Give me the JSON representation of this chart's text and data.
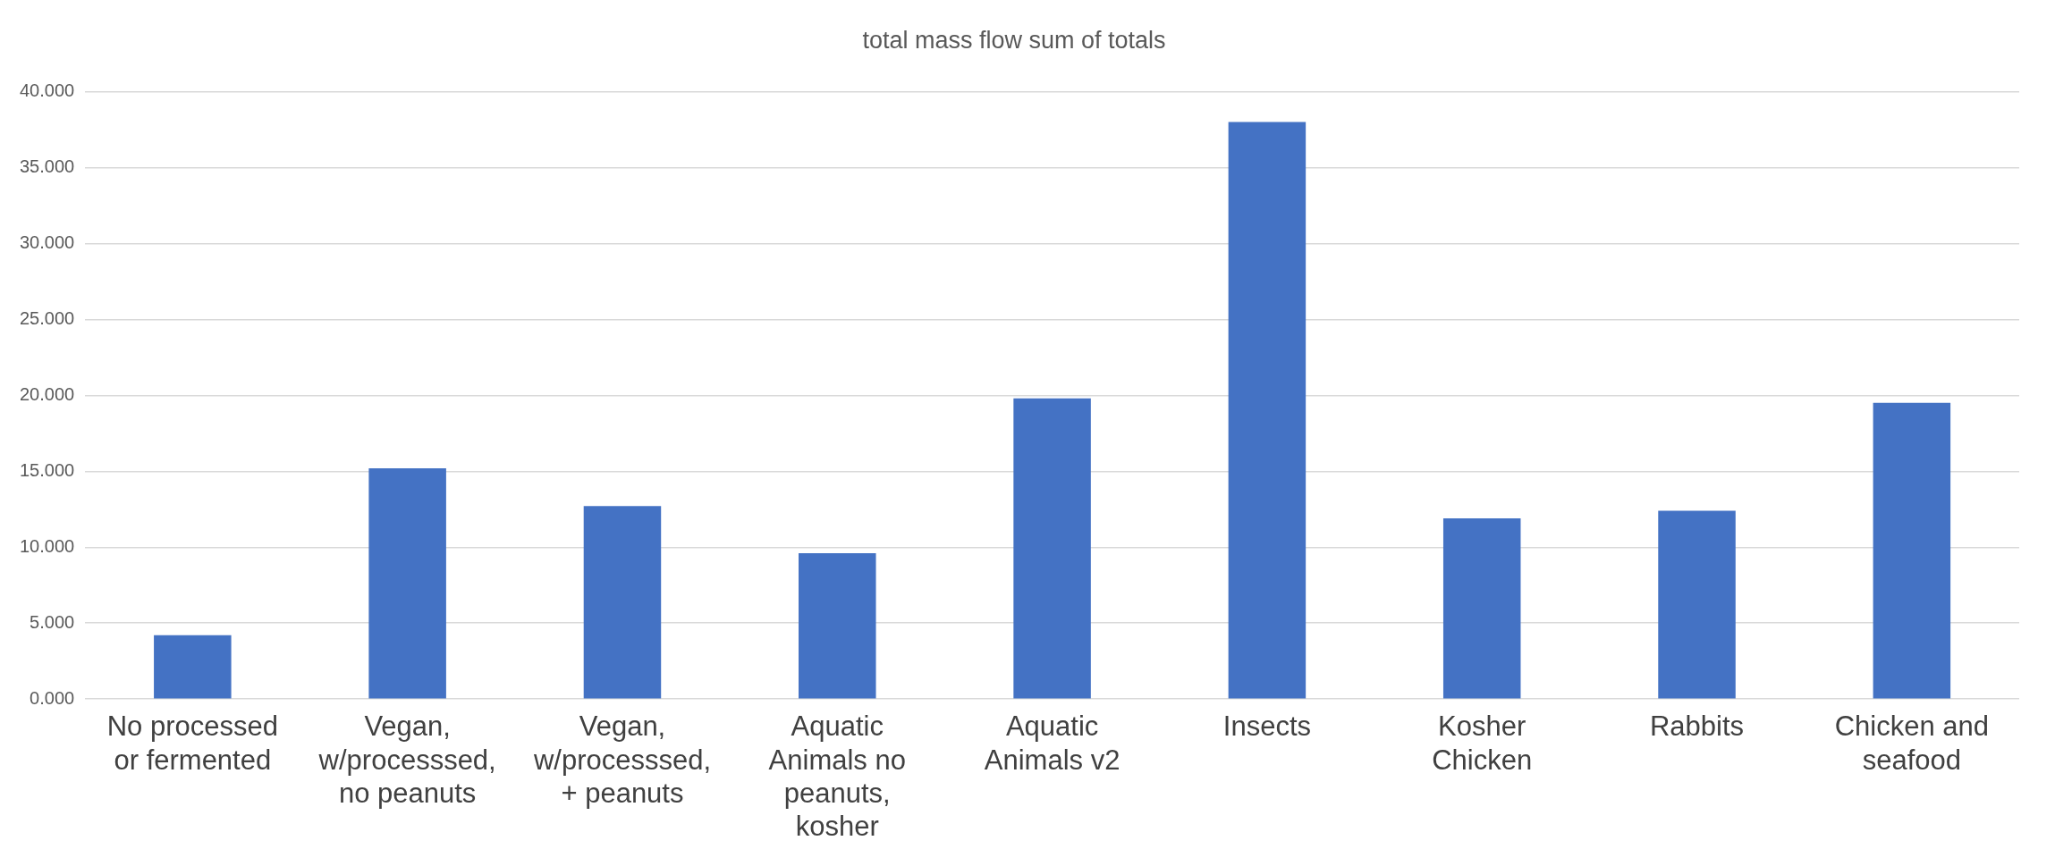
{
  "chart_data": {
    "type": "bar",
    "title": "total mass flow sum of totals",
    "categories": [
      "No processed or fermented",
      "Vegan, w/processsed, no peanuts",
      "Vegan, w/processsed, + peanuts",
      "Aquatic Animals no peanuts, kosher",
      "Aquatic Animals v2",
      "Insects",
      "Kosher Chicken",
      "Rabbits",
      "Chicken and seafood"
    ],
    "values": [
      4.2,
      15.2,
      12.7,
      9.6,
      19.8,
      38.0,
      11.9,
      12.4,
      19.5
    ],
    "color": "#4472c4",
    "ylim": [
      0,
      40
    ],
    "yticks": [
      {
        "value": 0,
        "label": "0.000"
      },
      {
        "value": 5,
        "label": "5.000"
      },
      {
        "value": 10,
        "label": "10.000"
      },
      {
        "value": 15,
        "label": "15.000"
      },
      {
        "value": 20,
        "label": "20.000"
      },
      {
        "value": 25,
        "label": "25.000"
      },
      {
        "value": 30,
        "label": "30.000"
      },
      {
        "value": 35,
        "label": "35.000"
      },
      {
        "value": 40,
        "label": "40.000"
      }
    ],
    "grid": "y",
    "legend": false
  }
}
